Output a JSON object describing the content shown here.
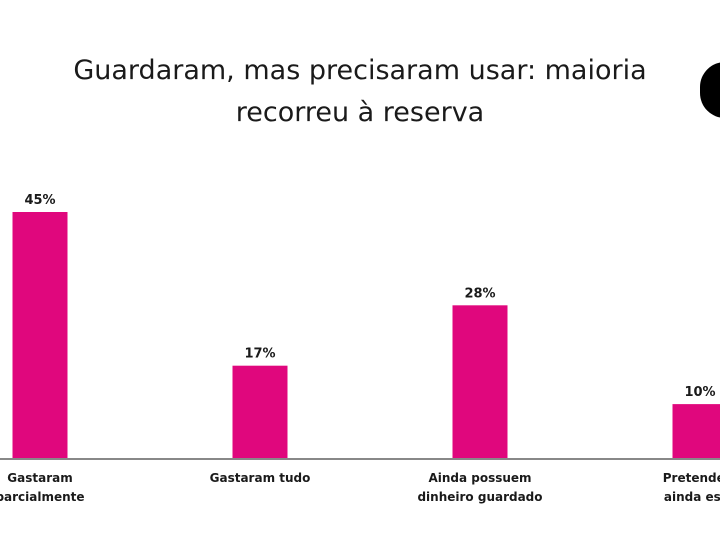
{
  "chart_data": {
    "type": "bar",
    "title": "Guardaram, mas precisaram usar: maioria recorreu à reserva",
    "categories": [
      [
        "Gastaram",
        "parcialmente"
      ],
      [
        "Gastaram tudo"
      ],
      [
        "Ainda possuem",
        "dinheiro guardado"
      ],
      [
        "Pretendem",
        "ainda esse"
      ]
    ],
    "values": [
      45,
      17,
      28,
      10
    ],
    "value_labels": [
      "45%",
      "17%",
      "28%",
      "10%"
    ],
    "ylim": [
      0,
      45
    ],
    "grid": false,
    "bar_color": "#e0077d",
    "axis_color": "#888888"
  }
}
